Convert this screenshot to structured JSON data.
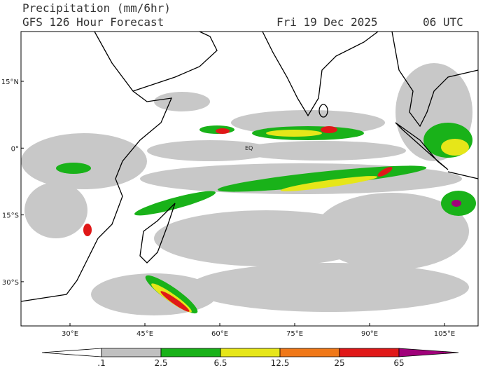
{
  "header": {
    "title": "Precipitation (mm/6hr)",
    "model": "GFS 126 Hour Forecast",
    "date": "Fri 19 Dec 2025",
    "time": "06 UTC"
  },
  "map": {
    "lat_labels": [
      "15°N",
      "0°",
      "15°S",
      "30°S"
    ],
    "lon_labels": [
      "30°E",
      "45°E",
      "60°E",
      "75°E",
      "90°E",
      "105°E"
    ],
    "equator_label": "EQ"
  },
  "colorbar": {
    "labels": [
      ".1",
      "2.5",
      "6.5",
      "12.5",
      "25",
      "65"
    ],
    "colors": [
      "#ffffff",
      "#c0c0c0",
      "#19b219",
      "#e6e619",
      "#f07818",
      "#e01818",
      "#a0007a"
    ]
  }
}
